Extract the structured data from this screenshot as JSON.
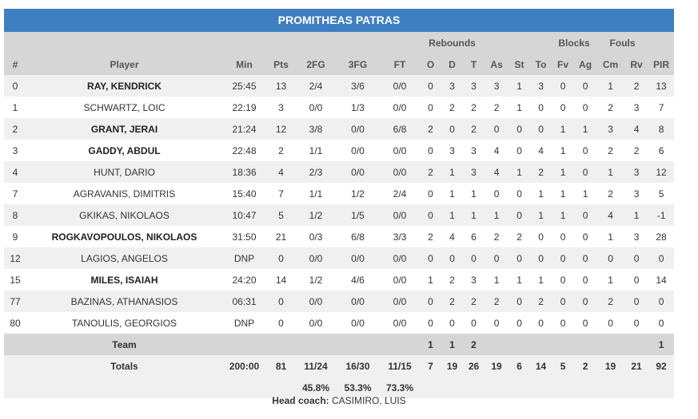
{
  "team_name": "PROMITHEAS PATRAS",
  "group_headers": {
    "rebounds": "Rebounds",
    "blocks": "Blocks",
    "fouls": "Fouls"
  },
  "columns": [
    "#",
    "Player",
    "Min",
    "Pts",
    "2FG",
    "3FG",
    "FT",
    "O",
    "D",
    "T",
    "As",
    "St",
    "To",
    "Fv",
    "Ag",
    "Cm",
    "Rv",
    "PIR"
  ],
  "players": [
    {
      "num": "0",
      "name": "RAY, KENDRICK",
      "starter": true,
      "min": "25:45",
      "pts": "13",
      "fg2": "2/4",
      "fg3": "3/6",
      "ft": "0/0",
      "o": "0",
      "d": "3",
      "t": "3",
      "as": "3",
      "st": "1",
      "to": "3",
      "fv": "0",
      "ag": "0",
      "cm": "1",
      "rv": "2",
      "pir": "13"
    },
    {
      "num": "1",
      "name": "SCHWARTZ, LOIC",
      "starter": false,
      "min": "22:19",
      "pts": "3",
      "fg2": "0/0",
      "fg3": "1/3",
      "ft": "0/0",
      "o": "0",
      "d": "2",
      "t": "2",
      "as": "2",
      "st": "1",
      "to": "0",
      "fv": "0",
      "ag": "0",
      "cm": "2",
      "rv": "3",
      "pir": "7"
    },
    {
      "num": "2",
      "name": "GRANT, JERAI",
      "starter": true,
      "min": "21:24",
      "pts": "12",
      "fg2": "3/8",
      "fg3": "0/0",
      "ft": "6/8",
      "o": "2",
      "d": "0",
      "t": "2",
      "as": "0",
      "st": "0",
      "to": "0",
      "fv": "1",
      "ag": "1",
      "cm": "3",
      "rv": "4",
      "pir": "8"
    },
    {
      "num": "3",
      "name": "GADDY, ABDUL",
      "starter": true,
      "min": "22:48",
      "pts": "2",
      "fg2": "1/1",
      "fg3": "0/0",
      "ft": "0/0",
      "o": "0",
      "d": "3",
      "t": "3",
      "as": "4",
      "st": "0",
      "to": "4",
      "fv": "1",
      "ag": "0",
      "cm": "2",
      "rv": "2",
      "pir": "6"
    },
    {
      "num": "4",
      "name": "HUNT, DARIO",
      "starter": false,
      "min": "18:36",
      "pts": "4",
      "fg2": "2/3",
      "fg3": "0/0",
      "ft": "0/0",
      "o": "2",
      "d": "1",
      "t": "3",
      "as": "4",
      "st": "1",
      "to": "2",
      "fv": "1",
      "ag": "0",
      "cm": "1",
      "rv": "3",
      "pir": "12"
    },
    {
      "num": "7",
      "name": "AGRAVANIS, DIMITRIS",
      "starter": false,
      "min": "15:40",
      "pts": "7",
      "fg2": "1/1",
      "fg3": "1/2",
      "ft": "2/4",
      "o": "0",
      "d": "1",
      "t": "1",
      "as": "0",
      "st": "0",
      "to": "1",
      "fv": "1",
      "ag": "1",
      "cm": "2",
      "rv": "3",
      "pir": "5"
    },
    {
      "num": "8",
      "name": "GKIKAS, NIKOLAOS",
      "starter": false,
      "min": "10:47",
      "pts": "5",
      "fg2": "1/2",
      "fg3": "1/5",
      "ft": "0/0",
      "o": "0",
      "d": "1",
      "t": "1",
      "as": "1",
      "st": "0",
      "to": "1",
      "fv": "1",
      "ag": "0",
      "cm": "4",
      "rv": "1",
      "pir": "-1"
    },
    {
      "num": "9",
      "name": "ROGKAVOPOULOS, NIKOLAOS",
      "starter": true,
      "min": "31:50",
      "pts": "21",
      "fg2": "0/3",
      "fg3": "6/8",
      "ft": "3/3",
      "o": "2",
      "d": "4",
      "t": "6",
      "as": "2",
      "st": "2",
      "to": "0",
      "fv": "0",
      "ag": "0",
      "cm": "1",
      "rv": "3",
      "pir": "28"
    },
    {
      "num": "12",
      "name": "LAGIOS, ANGELOS",
      "starter": false,
      "min": "DNP",
      "pts": "0",
      "fg2": "0/0",
      "fg3": "0/0",
      "ft": "0/0",
      "o": "0",
      "d": "0",
      "t": "0",
      "as": "0",
      "st": "0",
      "to": "0",
      "fv": "0",
      "ag": "0",
      "cm": "0",
      "rv": "0",
      "pir": "0"
    },
    {
      "num": "15",
      "name": "MILES, ISAIAH",
      "starter": true,
      "min": "24:20",
      "pts": "14",
      "fg2": "1/2",
      "fg3": "4/6",
      "ft": "0/0",
      "o": "1",
      "d": "2",
      "t": "3",
      "as": "1",
      "st": "1",
      "to": "1",
      "fv": "0",
      "ag": "0",
      "cm": "1",
      "rv": "0",
      "pir": "14"
    },
    {
      "num": "77",
      "name": "BAZINAS, ATHANASIOS",
      "starter": false,
      "min": "06:31",
      "pts": "0",
      "fg2": "0/0",
      "fg3": "0/0",
      "ft": "0/0",
      "o": "0",
      "d": "2",
      "t": "2",
      "as": "2",
      "st": "0",
      "to": "2",
      "fv": "0",
      "ag": "0",
      "cm": "2",
      "rv": "0",
      "pir": "0"
    },
    {
      "num": "80",
      "name": "TANOULIS, GEORGIOS",
      "starter": false,
      "min": "DNP",
      "pts": "0",
      "fg2": "0/0",
      "fg3": "0/0",
      "ft": "0/0",
      "o": "0",
      "d": "0",
      "t": "0",
      "as": "0",
      "st": "0",
      "to": "0",
      "fv": "0",
      "ag": "0",
      "cm": "0",
      "rv": "0",
      "pir": "0"
    }
  ],
  "team_row": {
    "label": "Team",
    "o": "1",
    "d": "1",
    "t": "2",
    "pir": "1"
  },
  "totals": {
    "label": "Totals",
    "min": "200:00",
    "pts": "81",
    "fg2": "11/24",
    "fg3": "16/30",
    "ft": "11/15",
    "o": "7",
    "d": "19",
    "t": "26",
    "as": "19",
    "st": "6",
    "to": "14",
    "fv": "5",
    "ag": "2",
    "cm": "19",
    "rv": "21",
    "pir": "92"
  },
  "percentages": {
    "fg2": "45.8%",
    "fg3": "53.3%",
    "ft": "73.3%"
  },
  "coach": {
    "label": "Head coach:",
    "name": "CASIMIRO, LUIS"
  }
}
